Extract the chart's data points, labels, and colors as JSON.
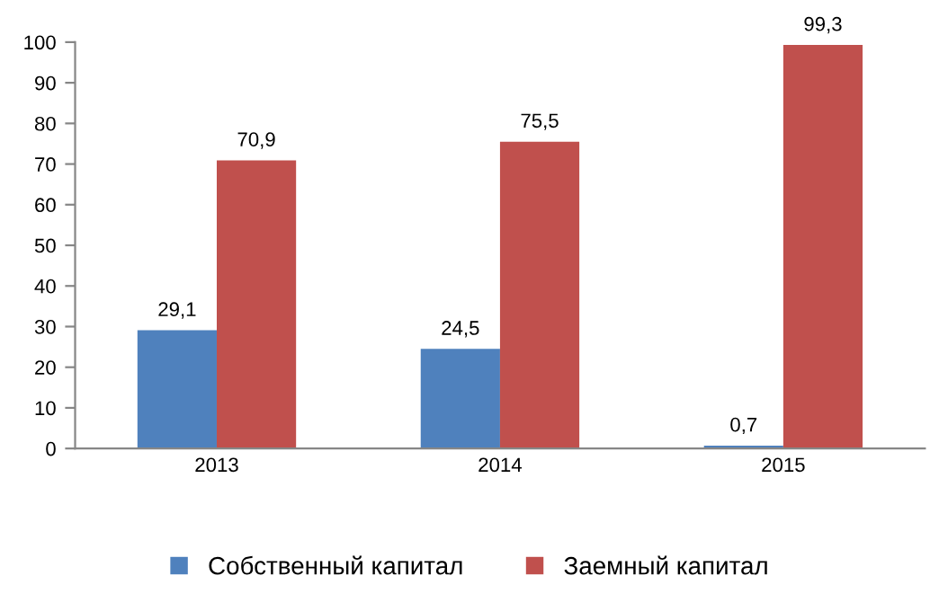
{
  "chart_data": {
    "type": "bar",
    "categories": [
      "2013",
      "2014",
      "2015"
    ],
    "series": [
      {
        "name": "Собственный капитал",
        "color": "#4f81bd",
        "values": [
          29.1,
          24.5,
          0.7
        ],
        "value_labels": [
          "29,1",
          "24,5",
          "0,7"
        ]
      },
      {
        "name": "Заемный капитал",
        "color": "#c0504d",
        "values": [
          70.9,
          75.5,
          99.3
        ],
        "value_labels": [
          "70,9",
          "75,5",
          "99,3"
        ]
      }
    ],
    "ylim": [
      0,
      100
    ],
    "yticks": [
      0,
      10,
      20,
      30,
      40,
      50,
      60,
      70,
      80,
      90,
      100
    ],
    "grid": false,
    "legend": "bottom"
  }
}
